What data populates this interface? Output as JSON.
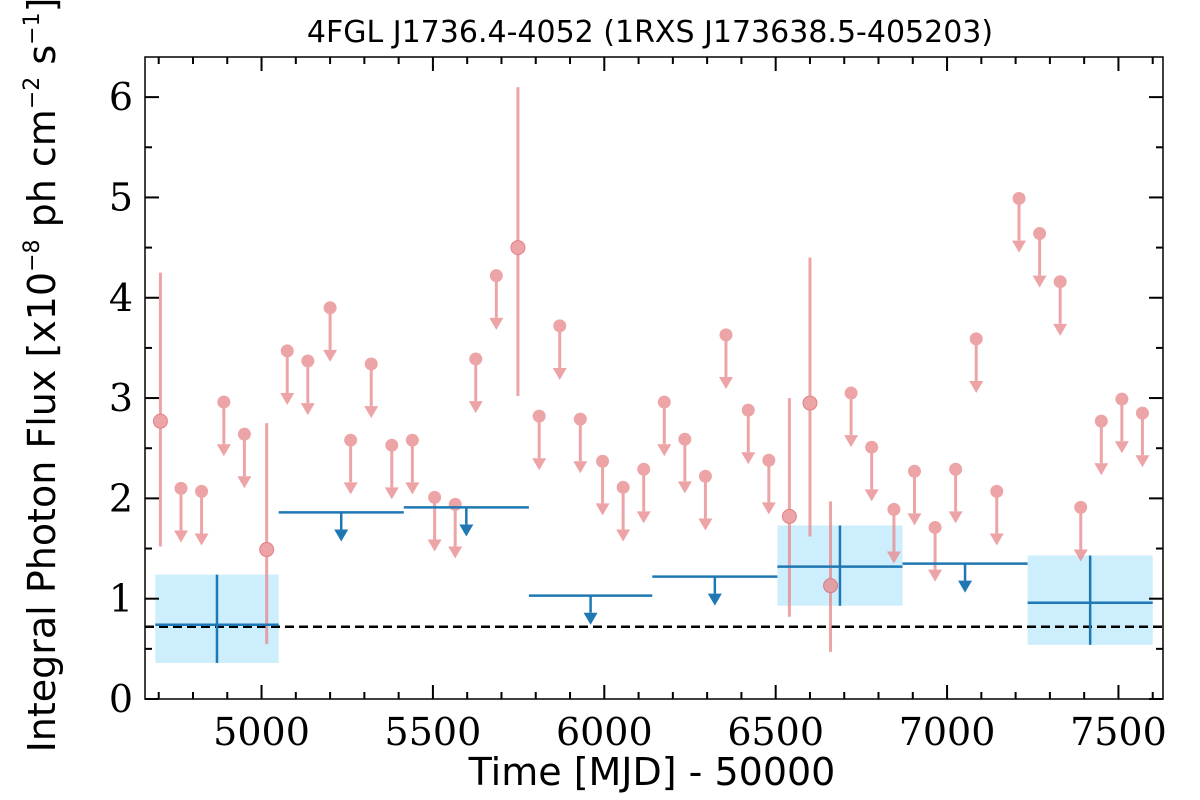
{
  "chart_data": {
    "type": "scatter",
    "title": "4FGL J1736.4-4052 (1RXS J173638.5-405203)",
    "xlabel": "Time [MJD] - 50000",
    "ylabel": {
      "prefix": "Integral Photon Flux [x10",
      "exp1": "−8",
      "mid": " ph cm",
      "exp2": "−2",
      "mid2": " s",
      "exp3": "−1",
      "suffix": "]"
    },
    "xlim": [
      4660,
      7630
    ],
    "ylim": [
      0,
      6.4
    ],
    "xticks": [
      5000,
      5500,
      6000,
      6500,
      7000,
      7500
    ],
    "xtick_labels": [
      "5000",
      "5500",
      "6000",
      "6500",
      "7000",
      "7500"
    ],
    "xminor_step": 100,
    "yticks": [
      0,
      1,
      2,
      3,
      4,
      5,
      6
    ],
    "ytick_labels": [
      "0",
      "1",
      "2",
      "3",
      "4",
      "5",
      "6"
    ],
    "yminor_step": 0.5,
    "reference_level": 0.72,
    "colors": {
      "short_bin": "#e8868a",
      "long_bin": "#1f77b4",
      "long_bin_fill": "#cdeefc",
      "reference": "#000000"
    },
    "short_bins_detections": [
      {
        "x": 4705,
        "y": 2.77,
        "yerr_low": 1.52,
        "yerr_high": 4.25
      },
      {
        "x": 5015,
        "y": 1.49,
        "yerr_low": 0.55,
        "yerr_high": 2.75
      },
      {
        "x": 5748,
        "y": 4.5,
        "yerr_low": 3.02,
        "yerr_high": 6.1
      },
      {
        "x": 6540,
        "y": 1.82,
        "yerr_low": 0.82,
        "yerr_high": 3.0
      },
      {
        "x": 6600,
        "y": 2.95,
        "yerr_low": 1.62,
        "yerr_high": 4.4
      },
      {
        "x": 6660,
        "y": 1.13,
        "yerr_low": 0.47,
        "yerr_high": 1.97
      }
    ],
    "short_bins_upper_limits": [
      {
        "x": 4765,
        "y": 2.1
      },
      {
        "x": 4825,
        "y": 2.07
      },
      {
        "x": 4890,
        "y": 2.96
      },
      {
        "x": 4950,
        "y": 2.64
      },
      {
        "x": 5075,
        "y": 3.47
      },
      {
        "x": 5135,
        "y": 3.37
      },
      {
        "x": 5200,
        "y": 3.9
      },
      {
        "x": 5260,
        "y": 2.58
      },
      {
        "x": 5320,
        "y": 3.34
      },
      {
        "x": 5380,
        "y": 2.53
      },
      {
        "x": 5440,
        "y": 2.58
      },
      {
        "x": 5505,
        "y": 2.01
      },
      {
        "x": 5565,
        "y": 1.94
      },
      {
        "x": 5625,
        "y": 3.39
      },
      {
        "x": 5685,
        "y": 4.22
      },
      {
        "x": 5810,
        "y": 2.82
      },
      {
        "x": 5870,
        "y": 3.72
      },
      {
        "x": 5930,
        "y": 2.79
      },
      {
        "x": 5995,
        "y": 2.37
      },
      {
        "x": 6055,
        "y": 2.11
      },
      {
        "x": 6115,
        "y": 2.29
      },
      {
        "x": 6175,
        "y": 2.96
      },
      {
        "x": 6235,
        "y": 2.59
      },
      {
        "x": 6295,
        "y": 2.22
      },
      {
        "x": 6355,
        "y": 3.63
      },
      {
        "x": 6420,
        "y": 2.88
      },
      {
        "x": 6480,
        "y": 2.38
      },
      {
        "x": 6720,
        "y": 3.05
      },
      {
        "x": 6780,
        "y": 2.51
      },
      {
        "x": 6845,
        "y": 1.89
      },
      {
        "x": 6905,
        "y": 2.27
      },
      {
        "x": 6965,
        "y": 1.71
      },
      {
        "x": 7025,
        "y": 2.29
      },
      {
        "x": 7085,
        "y": 3.59
      },
      {
        "x": 7145,
        "y": 2.07
      },
      {
        "x": 7210,
        "y": 4.99
      },
      {
        "x": 7270,
        "y": 4.64
      },
      {
        "x": 7330,
        "y": 4.16
      },
      {
        "x": 7390,
        "y": 1.91
      },
      {
        "x": 7450,
        "y": 2.77
      },
      {
        "x": 7510,
        "y": 2.99
      },
      {
        "x": 7570,
        "y": 2.85
      }
    ],
    "long_bins_detections": [
      {
        "x0": 4690,
        "x1": 5050,
        "y": 0.74,
        "yerr_low": 0.36,
        "yerr_high": 1.24
      },
      {
        "x0": 6505,
        "x1": 6870,
        "y": 1.32,
        "yerr_low": 0.93,
        "yerr_high": 1.73
      },
      {
        "x0": 7235,
        "x1": 7600,
        "y": 0.96,
        "yerr_low": 0.54,
        "yerr_high": 1.43
      }
    ],
    "long_bins_upper_limits": [
      {
        "x0": 5050,
        "x1": 5415,
        "y": 1.86
      },
      {
        "x0": 5415,
        "x1": 5780,
        "y": 1.91
      },
      {
        "x0": 5780,
        "x1": 6140,
        "y": 1.03
      },
      {
        "x0": 6140,
        "x1": 6505,
        "y": 1.22
      },
      {
        "x0": 6870,
        "x1": 7235,
        "y": 1.35
      }
    ]
  }
}
